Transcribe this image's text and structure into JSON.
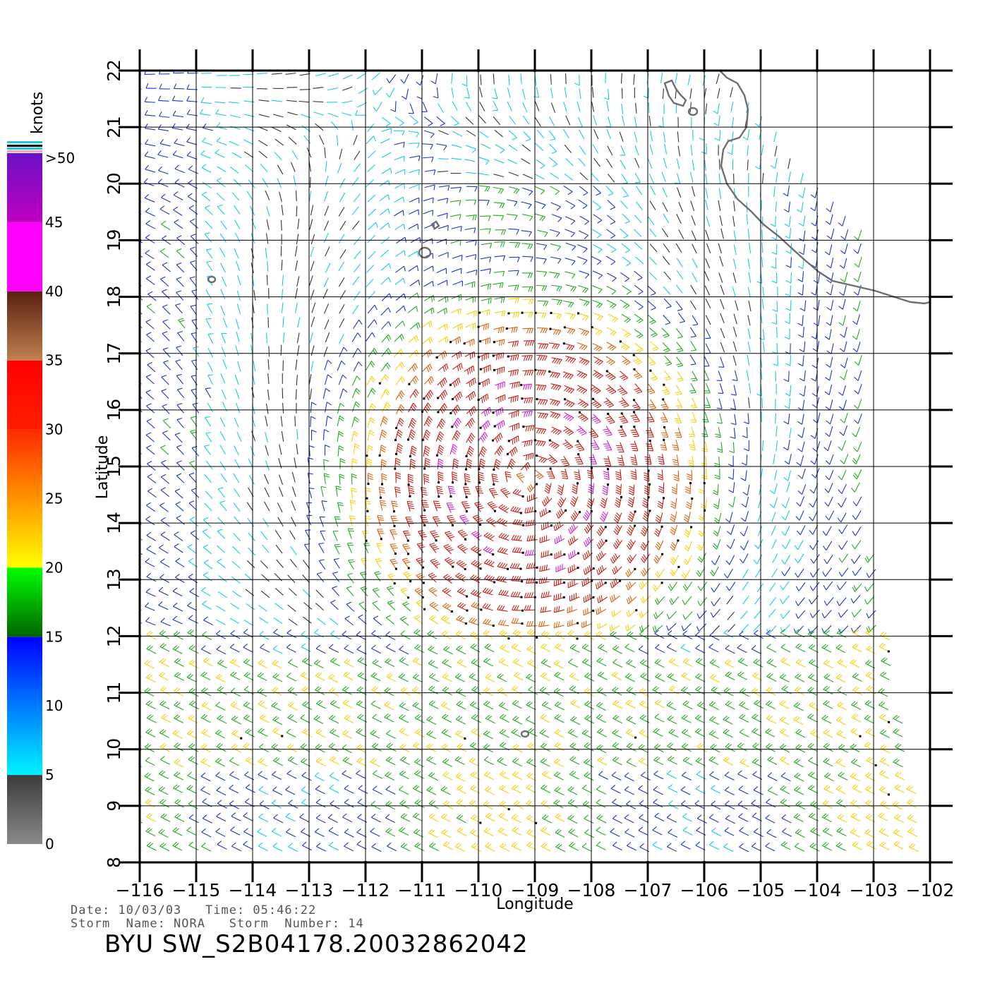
{
  "colorbar": {
    "unit": "knots",
    "labels": [
      ">50",
      "45",
      "40",
      "35",
      "30",
      "25",
      "20",
      "15",
      "10",
      "5",
      "0"
    ],
    "segments": [
      {
        "from": 0,
        "to": 5,
        "top": "#3c3c3c",
        "bottom": "#8a8a8a"
      },
      {
        "from": 5,
        "to": 15,
        "top": "#0000ff",
        "bottom": "#00f4ff"
      },
      {
        "from": 15,
        "to": 20,
        "top": "#00ff00",
        "bottom": "#006400"
      },
      {
        "from": 20,
        "to": 30,
        "top": "#ff2800",
        "bottom": "#ffff00"
      },
      {
        "from": 30,
        "to": 35,
        "top": "#ff0000",
        "bottom": "#ff1e00"
      },
      {
        "from": 35,
        "to": 40,
        "top": "#5a2010",
        "bottom": "#c08050"
      },
      {
        "from": 40,
        "to": 45,
        "top": "#ff00ff",
        "bottom": "#ff00ff"
      },
      {
        "from": 45,
        "to": 50,
        "top": "#6a10c8",
        "bottom": "#c000c0"
      }
    ]
  },
  "map": {
    "x_axis_label": "Longitude",
    "y_axis_label": "Latitude",
    "lon_ticks": [
      "−116",
      "−115",
      "−114",
      "−113",
      "−112",
      "−111",
      "−110",
      "−109",
      "−108",
      "−107",
      "−106",
      "−105",
      "−104",
      "−103",
      "−102"
    ],
    "lat_ticks": [
      "8",
      "9",
      "10",
      "11",
      "12",
      "13",
      "14",
      "15",
      "16",
      "17",
      "18",
      "19",
      "20",
      "21",
      "22"
    ],
    "lon_range": [
      -116,
      -102
    ],
    "lat_range": [
      8,
      22
    ],
    "storm_center": {
      "lon": -109.1,
      "lat": 14.8
    },
    "wind_colors": {
      "calm": "#333333",
      "light": "#19c8e6",
      "moderate": "#1e32d2",
      "fresh": "#22aa22",
      "strong": "#f0d20a",
      "gale": "#dd6010",
      "storm": "#c81e14",
      "max": "#d020d0"
    }
  },
  "info": {
    "line1": "Date: 10/03/03   Time: 05:46:22",
    "line2": "Storm  Name: NORA   Storm  Number: 14",
    "title": "BYU  SW_S2B04178.20032862042"
  }
}
